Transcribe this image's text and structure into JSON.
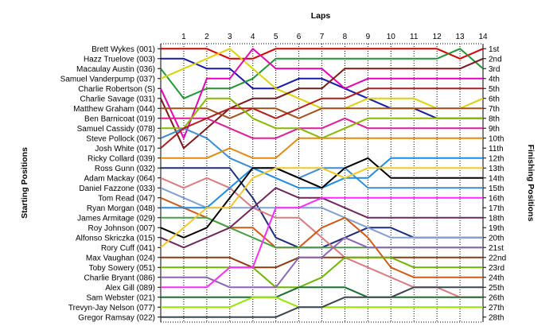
{
  "chart_data": {
    "type": "line",
    "title": "",
    "xlabel": "Laps",
    "ylabel_left": "Starting Positions",
    "ylabel_right": "Finishing Positions",
    "laps": [
      1,
      2,
      3,
      4,
      5,
      6,
      7,
      8,
      9,
      10,
      11,
      12,
      13,
      14
    ],
    "finish_labels": [
      "1st",
      "2nd",
      "3rd",
      "4th",
      "5th",
      "6th",
      "7th",
      "8th",
      "9th",
      "10th",
      "11th",
      "12th",
      "13th",
      "14th",
      "15th",
      "16th",
      "17th",
      "18th",
      "19th",
      "20th",
      "21st",
      "22nd",
      "23rd",
      "24th",
      "25th",
      "26th",
      "27th",
      "28th"
    ],
    "grid": true,
    "series": [
      {
        "name": "Brett Wykes (001)",
        "color": "#d40000",
        "positions": [
          1,
          1,
          1,
          2,
          2,
          1,
          1,
          1,
          1,
          1,
          1,
          1,
          1,
          2,
          1
        ]
      },
      {
        "name": "Hazz Truelove (003)",
        "color": "#1a1aa6",
        "positions": [
          2,
          2,
          3,
          3,
          5,
          5,
          4,
          4,
          5,
          6,
          7,
          7,
          8,
          8,
          8
        ]
      },
      {
        "name": "Macaulay Austin (036)",
        "color": "#1e9632",
        "positions": [
          3,
          6,
          5,
          5,
          4,
          2,
          2,
          2,
          2,
          2,
          2,
          2,
          2,
          1,
          3
        ]
      },
      {
        "name": "Samuel Vanderpump (037)",
        "color": "#dcd20a",
        "positions": [
          4,
          3,
          2,
          1,
          3,
          5,
          6,
          7,
          7,
          6,
          6,
          6,
          7,
          7,
          6
        ]
      },
      {
        "name": "Charlie Robertson (S)",
        "color": "#e600b4",
        "positions": [
          5,
          10,
          4,
          4,
          1,
          3,
          3,
          3,
          5,
          4,
          4,
          4,
          4,
          4,
          4
        ]
      },
      {
        "name": "Charlie Savage (031)",
        "color": "#7a1a1a",
        "positions": [
          6,
          11,
          9,
          7,
          6,
          6,
          5,
          5,
          3,
          3,
          3,
          3,
          3,
          3,
          2
        ]
      },
      {
        "name": "Matthew Graham (044)",
        "color": "#a05020",
        "positions": [
          7,
          7,
          7,
          8,
          7,
          7,
          8,
          7,
          7,
          7,
          7,
          7,
          7,
          7,
          7
        ]
      },
      {
        "name": "Ben Barnicoat (019)",
        "color": "#e01e96",
        "positions": [
          8,
          8,
          8,
          9,
          10,
          10,
          9,
          9,
          8,
          9,
          9,
          9,
          9,
          9,
          9
        ]
      },
      {
        "name": "Samuel Cassidy (078)",
        "color": "#8ab800",
        "positions": [
          9,
          9,
          6,
          6,
          8,
          9,
          9,
          10,
          9,
          8,
          8,
          8,
          8,
          8,
          8
        ]
      },
      {
        "name": "Steve Pollock (067)",
        "color": "#3c8cd2",
        "positions": [
          10,
          9,
          10,
          12,
          13,
          13,
          14,
          13,
          13,
          15,
          15,
          15,
          15,
          15,
          15
        ]
      },
      {
        "name": "Josh White (017)",
        "color": "#b01e1e",
        "positions": [
          11,
          9,
          8,
          7,
          7,
          8,
          7,
          6,
          6,
          5,
          5,
          5,
          5,
          5,
          5
        ]
      },
      {
        "name": "Ricky Collard (039)",
        "color": "#e08c14",
        "positions": [
          12,
          12,
          12,
          11,
          12,
          12,
          10,
          10,
          10,
          10,
          10,
          10,
          10,
          10,
          10
        ]
      },
      {
        "name": "Ross Gunn (032)",
        "color": "#1e2d78",
        "positions": [
          13,
          13,
          13,
          13,
          16,
          20,
          21,
          21,
          20,
          19,
          19,
          20,
          20,
          20,
          20
        ]
      },
      {
        "name": "Adam Mackay (064)",
        "color": "#dc7a82",
        "positions": [
          14,
          15,
          14,
          15,
          17,
          18,
          18,
          20,
          22,
          23,
          24,
          25,
          25,
          26,
          26
        ]
      },
      {
        "name": "Daniel Fazzone (033)",
        "color": "#82a0d2",
        "positions": [
          15,
          16,
          17,
          17,
          17,
          17,
          17,
          17,
          18,
          19,
          20,
          20,
          20,
          20,
          20
        ]
      },
      {
        "name": "Tom Read (047)",
        "color": "#d05a14",
        "positions": [
          16,
          17,
          18,
          19,
          19,
          21,
          21,
          19,
          18,
          20,
          23,
          24,
          24,
          24,
          24
        ]
      },
      {
        "name": "Ryan Morgan (048)",
        "color": "#1e8ce6",
        "positions": [
          17,
          17,
          17,
          15,
          13,
          14,
          15,
          15,
          14,
          14,
          12,
          12,
          12,
          12,
          12
        ]
      },
      {
        "name": "James Armitage (029)",
        "color": "#46a046",
        "positions": [
          18,
          18,
          18,
          19,
          20,
          21,
          21,
          21,
          21,
          21,
          21,
          21,
          21,
          21,
          21
        ]
      },
      {
        "name": "Roy Johnson (007)",
        "color": "#000000",
        "positions": [
          19,
          20,
          19,
          16,
          13,
          13,
          14,
          15,
          13,
          12,
          14,
          14,
          14,
          14,
          14
        ]
      },
      {
        "name": "Alfonso Skriczka (015)",
        "color": "#6e285a",
        "positions": [
          20,
          21,
          20,
          19,
          17,
          15,
          16,
          16,
          17,
          18,
          18,
          18,
          18,
          18,
          18
        ]
      },
      {
        "name": "Rory Cuff (041)",
        "color": "#f0c828",
        "positions": [
          21,
          19,
          17,
          17,
          14,
          13,
          13,
          13,
          14,
          13,
          13,
          13,
          13,
          13,
          13
        ]
      },
      {
        "name": "Max Vaughan (024)",
        "color": "#8c3c14",
        "positions": [
          22,
          22,
          22,
          22,
          23,
          23,
          22,
          22,
          22,
          22,
          22,
          22,
          22,
          22,
          22
        ]
      },
      {
        "name": "Toby Sowery (051)",
        "color": "#6eb400",
        "positions": [
          23,
          23,
          23,
          23,
          23,
          25,
          25,
          24,
          22,
          22,
          22,
          23,
          23,
          23,
          23
        ]
      },
      {
        "name": "Charlie Bryant (086)",
        "color": "#8c64b4",
        "positions": [
          24,
          24,
          24,
          25,
          25,
          25,
          22,
          22,
          20,
          21,
          21,
          21,
          21,
          21,
          21
        ]
      },
      {
        "name": "Alex Gill (089)",
        "color": "#ff2aff",
        "positions": [
          25,
          25,
          25,
          23,
          23,
          17,
          17,
          16,
          16,
          16,
          16,
          16,
          16,
          16,
          16
        ]
      },
      {
        "name": "Sam Webster (021)",
        "color": "#1e6e32",
        "positions": [
          26,
          26,
          26,
          26,
          26,
          26,
          25,
          25,
          25,
          26,
          26,
          26,
          26,
          26,
          26
        ]
      },
      {
        "name": "Trevyn-Jay Nelson (077)",
        "color": "#96e600",
        "positions": [
          27,
          27,
          27,
          27,
          26,
          26,
          27,
          27,
          27,
          27,
          27,
          27,
          27,
          27,
          27
        ]
      },
      {
        "name": "Gregor Ramsay (022)",
        "color": "#3c4650",
        "positions": [
          28,
          28,
          28,
          28,
          28,
          28,
          27,
          27,
          26,
          26,
          26,
          25,
          25,
          25,
          25
        ]
      }
    ]
  }
}
